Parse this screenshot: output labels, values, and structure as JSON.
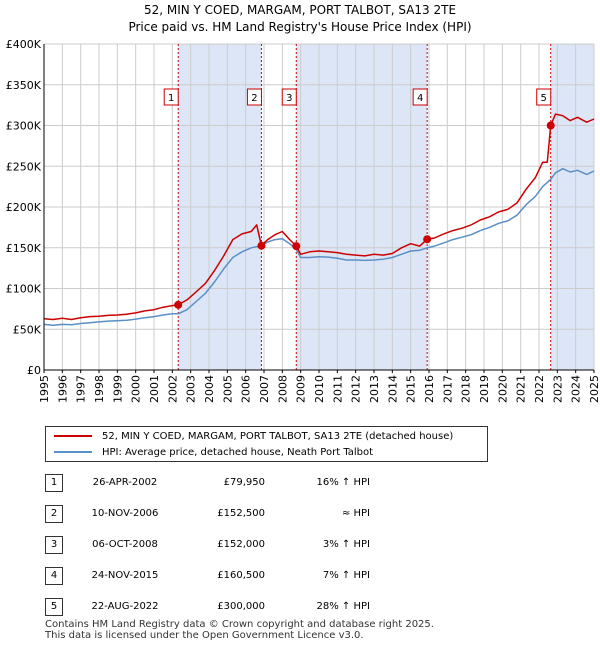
{
  "chart_data": {
    "type": "line",
    "title": "52, MIN Y COED, MARGAM, PORT TALBOT, SA13 2TE",
    "subtitle": "Price paid vs. HM Land Registry's House Price Index (HPI)",
    "ylim": [
      0,
      400000
    ],
    "xlim": [
      1995,
      2025
    ],
    "y_ticks": [
      0,
      50000,
      100000,
      150000,
      200000,
      250000,
      300000,
      350000,
      400000
    ],
    "y_tick_labels": [
      "£0",
      "£50K",
      "£100K",
      "£150K",
      "£200K",
      "£250K",
      "£300K",
      "£350K",
      "£400K"
    ],
    "x_tick_labels": [
      "1995",
      "1996",
      "1997",
      "1998",
      "1999",
      "2000",
      "2001",
      "2002",
      "2003",
      "2004",
      "2005",
      "2006",
      "2007",
      "2008",
      "2009",
      "2010",
      "2011",
      "2012",
      "2013",
      "2014",
      "2015",
      "2016",
      "2017",
      "2018",
      "2019",
      "2020",
      "2021",
      "2022",
      "2023",
      "2024",
      "2025"
    ],
    "grid": true,
    "colors": {
      "property": "#cc0000",
      "hpi": "#5b8fc7",
      "shade": "#dde6f7",
      "vline": "#cc0000",
      "grid": "#cccccc"
    },
    "series": [
      {
        "name": "52, MIN Y COED, MARGAM, PORT TALBOT, SA13 2TE (detached house)",
        "points": [
          [
            1995.0,
            63000
          ],
          [
            1995.5,
            62000
          ],
          [
            1996.0,
            63500
          ],
          [
            1996.5,
            62000
          ],
          [
            1997.0,
            64000
          ],
          [
            1997.5,
            65500
          ],
          [
            1998.0,
            66000
          ],
          [
            1998.5,
            67000
          ],
          [
            1999.0,
            67500
          ],
          [
            1999.5,
            68500
          ],
          [
            2000.0,
            70000
          ],
          [
            2000.5,
            72500
          ],
          [
            2001.0,
            74000
          ],
          [
            2001.5,
            77000
          ],
          [
            2002.0,
            79000
          ],
          [
            2002.32,
            79950
          ],
          [
            2002.8,
            86000
          ],
          [
            2003.3,
            96000
          ],
          [
            2003.8,
            106000
          ],
          [
            2004.3,
            122000
          ],
          [
            2004.8,
            140000
          ],
          [
            2005.3,
            160000
          ],
          [
            2005.8,
            167000
          ],
          [
            2006.3,
            170000
          ],
          [
            2006.6,
            178000
          ],
          [
            2006.86,
            152500
          ],
          [
            2007.2,
            160000
          ],
          [
            2007.6,
            166000
          ],
          [
            2008.0,
            170000
          ],
          [
            2008.4,
            160000
          ],
          [
            2008.76,
            152000
          ],
          [
            2009.0,
            142000
          ],
          [
            2009.5,
            145000
          ],
          [
            2010.0,
            146000
          ],
          [
            2010.5,
            145000
          ],
          [
            2011.0,
            144000
          ],
          [
            2011.5,
            142000
          ],
          [
            2012.0,
            141000
          ],
          [
            2012.5,
            140000
          ],
          [
            2013.0,
            142000
          ],
          [
            2013.5,
            141000
          ],
          [
            2014.0,
            143000
          ],
          [
            2014.5,
            150000
          ],
          [
            2015.0,
            155000
          ],
          [
            2015.5,
            152000
          ],
          [
            2015.9,
            160500
          ],
          [
            2016.3,
            162000
          ],
          [
            2016.8,
            167000
          ],
          [
            2017.3,
            171000
          ],
          [
            2017.8,
            174000
          ],
          [
            2018.3,
            178000
          ],
          [
            2018.8,
            184000
          ],
          [
            2019.3,
            188000
          ],
          [
            2019.8,
            194000
          ],
          [
            2020.3,
            197000
          ],
          [
            2020.8,
            205000
          ],
          [
            2021.3,
            222000
          ],
          [
            2021.8,
            236000
          ],
          [
            2022.2,
            255000
          ],
          [
            2022.45,
            255000
          ],
          [
            2022.64,
            300000
          ],
          [
            2022.9,
            314000
          ],
          [
            2023.3,
            312000
          ],
          [
            2023.7,
            306000
          ],
          [
            2024.1,
            310000
          ],
          [
            2024.6,
            304000
          ],
          [
            2025.0,
            308000
          ]
        ]
      },
      {
        "name": "HPI: Average price, detached house, Neath Port Talbot",
        "points": [
          [
            1995.0,
            56000
          ],
          [
            1995.5,
            55000
          ],
          [
            1996.0,
            56000
          ],
          [
            1996.5,
            55500
          ],
          [
            1997.0,
            57000
          ],
          [
            1997.5,
            58000
          ],
          [
            1998.0,
            59000
          ],
          [
            1998.5,
            60000
          ],
          [
            1999.0,
            60500
          ],
          [
            1999.5,
            61000
          ],
          [
            2000.0,
            62500
          ],
          [
            2000.5,
            64000
          ],
          [
            2001.0,
            65500
          ],
          [
            2001.5,
            67500
          ],
          [
            2002.0,
            69000
          ],
          [
            2002.32,
            69000
          ],
          [
            2002.8,
            74000
          ],
          [
            2003.3,
            84000
          ],
          [
            2003.8,
            94000
          ],
          [
            2004.3,
            108000
          ],
          [
            2004.8,
            124000
          ],
          [
            2005.3,
            138000
          ],
          [
            2005.8,
            145000
          ],
          [
            2006.3,
            150000
          ],
          [
            2006.86,
            152500
          ],
          [
            2007.2,
            157000
          ],
          [
            2007.6,
            160000
          ],
          [
            2008.0,
            161000
          ],
          [
            2008.4,
            155000
          ],
          [
            2008.76,
            148000
          ],
          [
            2009.0,
            138000
          ],
          [
            2009.5,
            138000
          ],
          [
            2010.0,
            139000
          ],
          [
            2010.5,
            138500
          ],
          [
            2011.0,
            137000
          ],
          [
            2011.5,
            135000
          ],
          [
            2012.0,
            135000
          ],
          [
            2012.5,
            134500
          ],
          [
            2013.0,
            135000
          ],
          [
            2013.5,
            136000
          ],
          [
            2014.0,
            138000
          ],
          [
            2014.5,
            142000
          ],
          [
            2015.0,
            146000
          ],
          [
            2015.5,
            147000
          ],
          [
            2015.9,
            150000
          ],
          [
            2016.3,
            152000
          ],
          [
            2016.8,
            156000
          ],
          [
            2017.3,
            160000
          ],
          [
            2017.8,
            163000
          ],
          [
            2018.3,
            166000
          ],
          [
            2018.8,
            171000
          ],
          [
            2019.3,
            175000
          ],
          [
            2019.8,
            180000
          ],
          [
            2020.3,
            183000
          ],
          [
            2020.8,
            190000
          ],
          [
            2021.3,
            203000
          ],
          [
            2021.8,
            213000
          ],
          [
            2022.2,
            225000
          ],
          [
            2022.64,
            234000
          ],
          [
            2022.9,
            242000
          ],
          [
            2023.3,
            247000
          ],
          [
            2023.7,
            243000
          ],
          [
            2024.1,
            245000
          ],
          [
            2024.6,
            240000
          ],
          [
            2025.0,
            244000
          ]
        ]
      }
    ],
    "sales": [
      {
        "label": "1",
        "date": "26-APR-2002",
        "x": 2002.32,
        "value": 79950
      },
      {
        "label": "2",
        "date": "10-NOV-2006",
        "x": 2006.86,
        "value": 152500
      },
      {
        "label": "3",
        "date": "06-OCT-2008",
        "x": 2008.76,
        "value": 152000
      },
      {
        "label": "4",
        "date": "24-NOV-2015",
        "x": 2015.9,
        "value": 160500
      },
      {
        "label": "5",
        "date": "22-AUG-2022",
        "x": 2022.64,
        "value": 300000
      }
    ],
    "shaded_periods": [
      [
        2002.32,
        2006.86
      ],
      [
        2008.76,
        2015.9
      ],
      [
        2022.64,
        2025.0
      ]
    ],
    "legend": [
      "52, MIN Y COED, MARGAM, PORT TALBOT, SA13 2TE (detached house)",
      "HPI: Average price, detached house, Neath Port Talbot"
    ]
  },
  "transactions": [
    {
      "num": "1",
      "date": "26-APR-2002",
      "price": "£79,950",
      "hpi": "16% ↑ HPI"
    },
    {
      "num": "2",
      "date": "10-NOV-2006",
      "price": "£152,500",
      "hpi": "≈ HPI"
    },
    {
      "num": "3",
      "date": "06-OCT-2008",
      "price": "£152,000",
      "hpi": "3% ↑ HPI"
    },
    {
      "num": "4",
      "date": "24-NOV-2015",
      "price": "£160,500",
      "hpi": "7% ↑ HPI"
    },
    {
      "num": "5",
      "date": "22-AUG-2022",
      "price": "£300,000",
      "hpi": "28% ↑ HPI"
    }
  ],
  "footer": {
    "line1": "Contains HM Land Registry data © Crown copyright and database right 2025.",
    "line2": "This data is licensed under the Open Government Licence v3.0."
  }
}
